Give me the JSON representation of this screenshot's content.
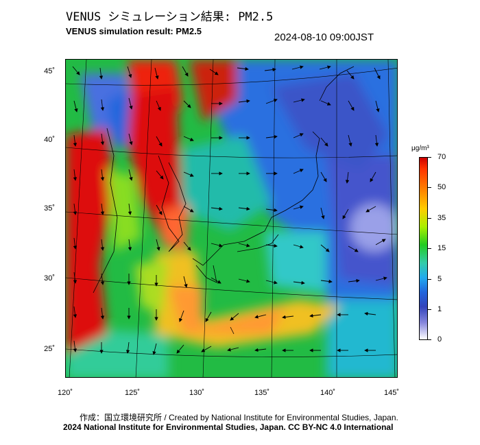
{
  "header": {
    "title_jp": "VENUS シミュレーション結果: PM2.5",
    "title_en": "VENUS simulation result: PM2.5",
    "timestamp": "2024-08-10 09:00JST"
  },
  "map": {
    "lat_labels": [
      "45˚",
      "40˚",
      "35˚",
      "30˚",
      "25˚"
    ],
    "lon_labels": [
      "120˚",
      "125˚",
      "130˚",
      "135˚",
      "140˚",
      "145˚"
    ]
  },
  "colorbar": {
    "unit": "μg/m³",
    "labels": [
      "70",
      "50",
      "35",
      "15",
      "5",
      "1",
      "0"
    ],
    "colors": [
      "#cc0000",
      "#ff7700",
      "#ffcc00",
      "#22cc22",
      "#22aaee",
      "#3344bb",
      "#ffffff"
    ]
  },
  "footer": {
    "credit_jp": "作成：国立環境研究所 / Created by National Institute for Environmental Studies, Japan.",
    "copyright": "2024 National Institute for Environmental Studies, Japan. CC BY-NC 4.0 International"
  }
}
